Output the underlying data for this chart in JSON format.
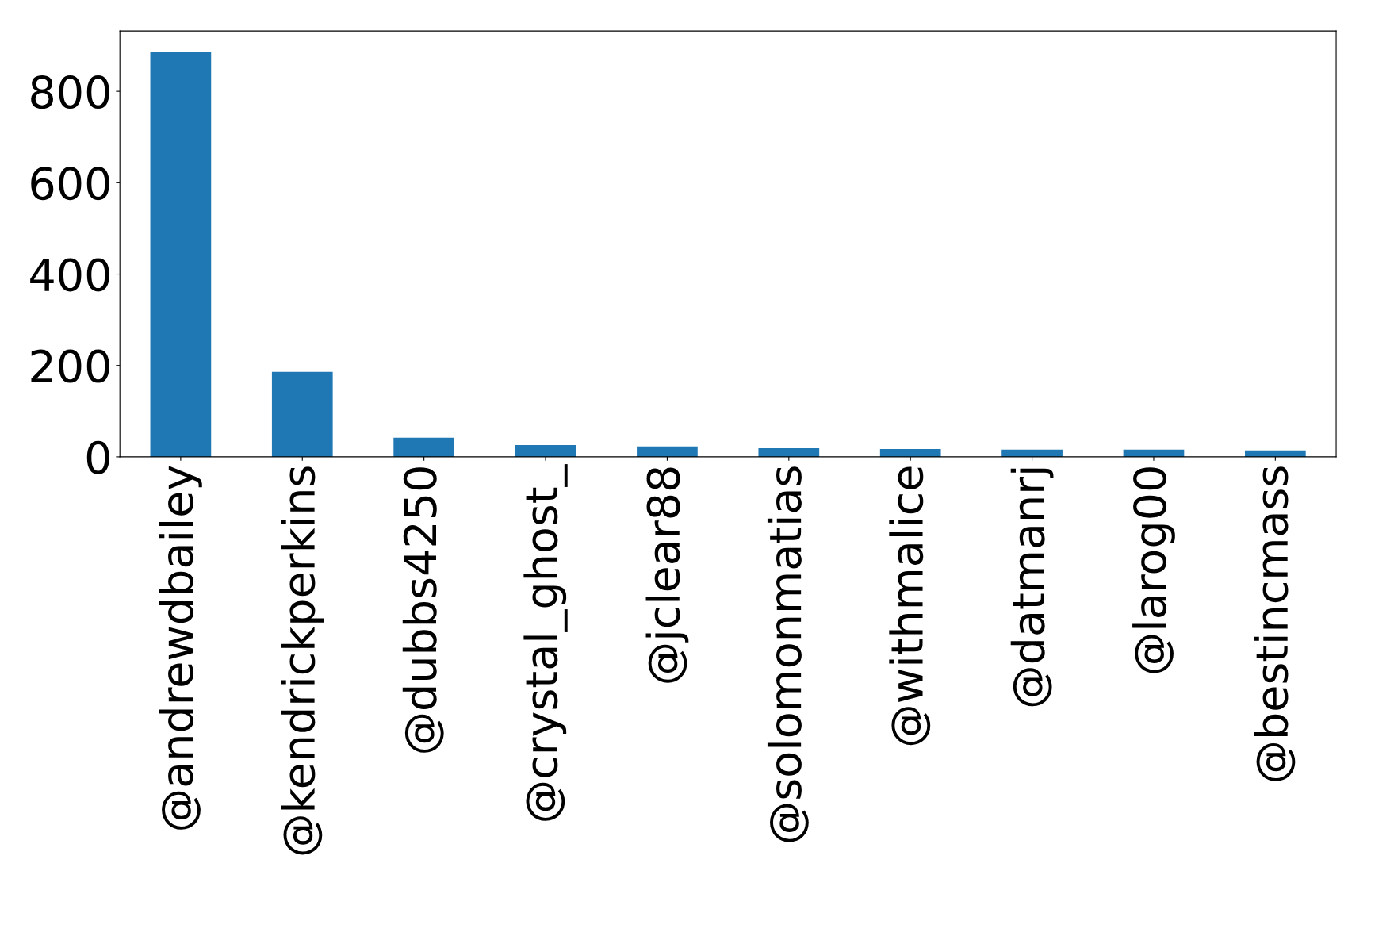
{
  "chart_data": {
    "type": "bar",
    "categories": [
      "@andrewdbailey",
      "@kendrickperkins",
      "@dubbs4250",
      "@crystal_ghost_",
      "@jclear88",
      "@solomonmatias",
      "@withmalice",
      "@datmanrj",
      "@larog00",
      "@bestincmass"
    ],
    "values": [
      887,
      186,
      42,
      26,
      23,
      19,
      17,
      16,
      16,
      14
    ],
    "color": "#1f77b4",
    "ylim": [
      0,
      932
    ],
    "yticks": [
      0,
      200,
      400,
      600,
      800
    ],
    "grid": false,
    "legend": false
  }
}
